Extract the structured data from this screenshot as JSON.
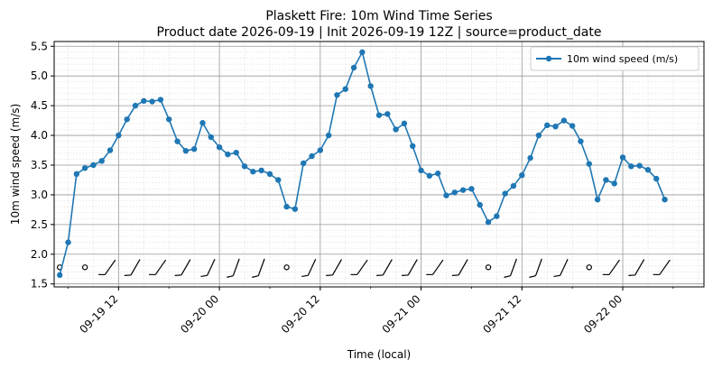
{
  "chart_data": {
    "type": "line",
    "title_line1": "Plaskett Fire: 10m Wind Time Series",
    "title_line2": "Product date 2026-09-19 | Init 2026-09-19 12Z | source=product_date",
    "xlabel": "Time (local)",
    "ylabel": "10m wind speed (m/s)",
    "ylim": [
      1.45,
      5.58
    ],
    "xlim": [
      "2026-09-19 04:20",
      "2026-09-22 09:40"
    ],
    "y_ticks": [
      1.5,
      2.0,
      2.5,
      3.0,
      3.5,
      4.0,
      4.5,
      5.0,
      5.5
    ],
    "y_tick_labels": [
      "1.5",
      "2.0",
      "2.5",
      "3.0",
      "3.5",
      "4.0",
      "4.5",
      "5.0",
      "5.5"
    ],
    "x_ticks": [
      "2026-09-19 12:00",
      "2026-09-20 00:00",
      "2026-09-20 12:00",
      "2026-09-21 00:00",
      "2026-09-21 12:00",
      "2026-09-22 00:00"
    ],
    "x_tick_labels": [
      "09-19 12",
      "09-20 00",
      "09-20 12",
      "09-21 00",
      "09-21 12",
      "09-22 00"
    ],
    "grid": true,
    "legend_position": "top-right",
    "series": [
      {
        "name": "10m wind speed (m/s)",
        "color": "#1f77b4",
        "x": [
          "2026-09-19 05:00",
          "2026-09-19 06:00",
          "2026-09-19 07:00",
          "2026-09-19 08:00",
          "2026-09-19 09:00",
          "2026-09-19 10:00",
          "2026-09-19 11:00",
          "2026-09-19 12:00",
          "2026-09-19 13:00",
          "2026-09-19 14:00",
          "2026-09-19 15:00",
          "2026-09-19 16:00",
          "2026-09-19 17:00",
          "2026-09-19 18:00",
          "2026-09-19 19:00",
          "2026-09-19 20:00",
          "2026-09-19 21:00",
          "2026-09-19 22:00",
          "2026-09-19 23:00",
          "2026-09-20 00:00",
          "2026-09-20 01:00",
          "2026-09-20 02:00",
          "2026-09-20 03:00",
          "2026-09-20 04:00",
          "2026-09-20 05:00",
          "2026-09-20 06:00",
          "2026-09-20 07:00",
          "2026-09-20 08:00",
          "2026-09-20 09:00",
          "2026-09-20 10:00",
          "2026-09-20 11:00",
          "2026-09-20 12:00",
          "2026-09-20 13:00",
          "2026-09-20 14:00",
          "2026-09-20 15:00",
          "2026-09-20 16:00",
          "2026-09-20 17:00",
          "2026-09-20 18:00",
          "2026-09-20 19:00",
          "2026-09-20 20:00",
          "2026-09-20 21:00",
          "2026-09-20 22:00",
          "2026-09-20 23:00",
          "2026-09-21 00:00",
          "2026-09-21 01:00",
          "2026-09-21 02:00",
          "2026-09-21 03:00",
          "2026-09-21 04:00",
          "2026-09-21 05:00",
          "2026-09-21 06:00",
          "2026-09-21 07:00",
          "2026-09-21 08:00",
          "2026-09-21 09:00",
          "2026-09-21 10:00",
          "2026-09-21 11:00",
          "2026-09-21 12:00",
          "2026-09-21 13:00",
          "2026-09-21 14:00",
          "2026-09-21 15:00",
          "2026-09-21 16:00",
          "2026-09-21 17:00",
          "2026-09-21 18:00",
          "2026-09-21 19:00",
          "2026-09-21 20:00",
          "2026-09-21 21:00",
          "2026-09-21 22:00",
          "2026-09-21 23:00",
          "2026-09-22 00:00",
          "2026-09-22 01:00",
          "2026-09-22 02:00",
          "2026-09-22 03:00",
          "2026-09-22 04:00",
          "2026-09-22 05:00"
        ],
        "values": [
          1.65,
          2.2,
          3.35,
          3.45,
          3.5,
          3.57,
          3.75,
          4.0,
          4.27,
          4.5,
          4.58,
          4.57,
          4.6,
          4.27,
          3.9,
          3.74,
          3.77,
          4.21,
          3.97,
          3.8,
          3.68,
          3.71,
          3.48,
          3.39,
          3.41,
          3.35,
          3.25,
          2.8,
          2.76,
          3.53,
          3.65,
          3.75,
          4.0,
          4.68,
          4.78,
          5.14,
          5.4,
          4.83,
          4.34,
          4.36,
          4.1,
          4.2,
          3.82,
          3.41,
          3.32,
          3.36,
          2.99,
          3.04,
          3.08,
          3.1,
          2.83,
          2.54,
          2.64,
          3.02,
          3.15,
          3.33,
          3.62,
          4.0,
          4.17,
          4.15,
          4.25,
          4.16,
          3.9,
          3.52,
          2.92,
          3.25,
          3.19,
          3.63,
          3.48,
          3.49,
          3.42,
          3.27,
          2.92
        ]
      }
    ],
    "wind_barbs": {
      "y": 1.78,
      "x": [
        "2026-09-19 05:00",
        "2026-09-19 08:00",
        "2026-09-19 11:00",
        "2026-09-19 14:00",
        "2026-09-19 17:00",
        "2026-09-19 20:00",
        "2026-09-19 23:00",
        "2026-09-20 02:00",
        "2026-09-20 05:00",
        "2026-09-20 08:00",
        "2026-09-20 11:00",
        "2026-09-20 14:00",
        "2026-09-20 17:00",
        "2026-09-20 20:00",
        "2026-09-20 23:00",
        "2026-09-21 02:00",
        "2026-09-21 05:00",
        "2026-09-21 08:00",
        "2026-09-21 11:00",
        "2026-09-21 14:00",
        "2026-09-21 17:00",
        "2026-09-21 20:00",
        "2026-09-21 23:00",
        "2026-09-22 02:00",
        "2026-09-22 05:00"
      ],
      "kind": [
        "calm",
        "calm",
        "barb",
        "barb",
        "barb",
        "barb",
        "barb",
        "barb",
        "barb",
        "calm",
        "barb",
        "barb",
        "barb",
        "barb",
        "barb",
        "barb",
        "barb",
        "calm",
        "barb",
        "barb",
        "barb",
        "calm",
        "barb",
        "barb",
        "barb"
      ],
      "angle_deg": [
        0,
        0,
        -55,
        -60,
        -55,
        -60,
        -65,
        -70,
        -70,
        0,
        -65,
        -60,
        -55,
        -60,
        -60,
        -55,
        -60,
        0,
        -70,
        -70,
        -65,
        0,
        -55,
        -60,
        -55
      ]
    }
  }
}
